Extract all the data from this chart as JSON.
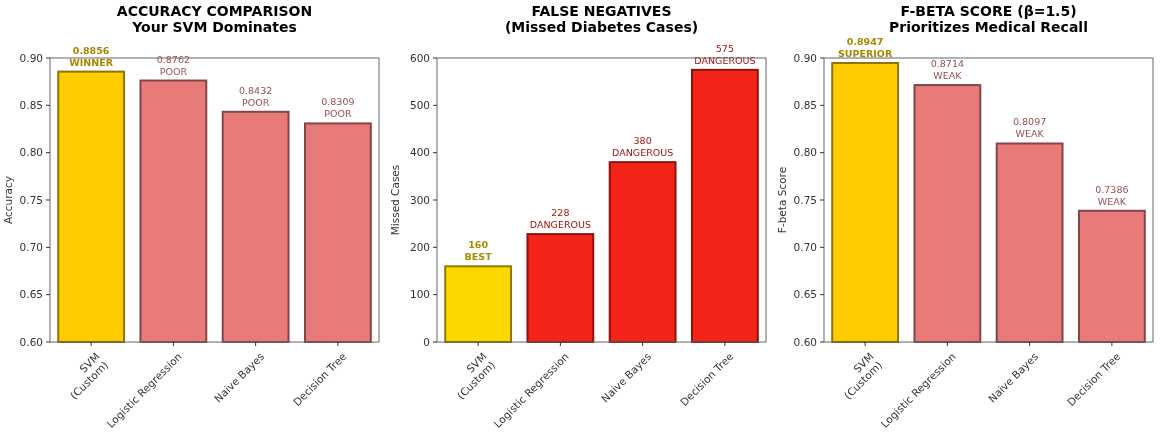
{
  "chart_data": [
    {
      "type": "bar",
      "title": "ACCURACY COMPARISON\nYour SVM Dominates",
      "ylabel": "Accuracy",
      "categories": [
        "SVM\n(Custom)",
        "Logistic Regression",
        "Naive Bayes",
        "Decision Tree"
      ],
      "values": [
        0.8856,
        0.8762,
        0.8432,
        0.8309
      ],
      "colors": [
        "#ffcc00",
        "#e87a7a",
        "#e87a7a",
        "#e87a7a"
      ],
      "value_labels": [
        "0.8856\nWINNER",
        "0.8762\nPOOR",
        "0.8432\nPOOR",
        "0.8309\nPOOR"
      ],
      "ylim": [
        0.6,
        0.9
      ],
      "yticks": [
        {
          "value": 0.6,
          "label": "0.60"
        },
        {
          "value": 0.65,
          "label": "0.65"
        },
        {
          "value": 0.7,
          "label": "0.70"
        },
        {
          "value": 0.75,
          "label": "0.75"
        },
        {
          "value": 0.8,
          "label": "0.80"
        },
        {
          "value": 0.85,
          "label": "0.85"
        },
        {
          "value": 0.9,
          "label": "0.90"
        }
      ]
    },
    {
      "type": "bar",
      "title": "FALSE NEGATIVES\n(Missed Diabetes Cases)",
      "ylabel": "Missed Cases",
      "categories": [
        "SVM\n(Custom)",
        "Logistic Regression",
        "Naive Bayes",
        "Decision Tree"
      ],
      "values": [
        160,
        228,
        380,
        575
      ],
      "colors": [
        "#ffd700",
        "#f52418",
        "#f52418",
        "#f52418"
      ],
      "value_labels": [
        "160\nBEST",
        "228\nDANGEROUS",
        "380\nDANGEROUS",
        "575\nDANGEROUS"
      ],
      "ylim": [
        0,
        600
      ],
      "yticks": [
        0,
        100,
        200,
        300,
        400,
        500,
        600
      ]
    },
    {
      "type": "bar",
      "title": "F-BETA SCORE (β=1.5)\nPrioritizes Medical Recall",
      "ylabel": "F-beta Score",
      "categories": [
        "SVM\n(Custom)",
        "Logistic Regression",
        "Naive Bayes",
        "Decision Tree"
      ],
      "values": [
        0.8947,
        0.8714,
        0.8097,
        0.7386
      ],
      "colors": [
        "#ffcc00",
        "#e87a7a",
        "#e87a7a",
        "#e87a7a"
      ],
      "value_labels": [
        "0.8947\nSUPERIOR",
        "0.8714\nWEAK",
        "0.8097\nWEAK",
        "0.7386\nWEAK"
      ],
      "ylim": [
        0.6,
        0.9
      ],
      "yticks": [
        {
          "value": 0.6,
          "label": "0.60"
        },
        {
          "value": 0.65,
          "label": "0.65"
        },
        {
          "value": 0.7,
          "label": "0.70"
        },
        {
          "value": 0.75,
          "label": "0.75"
        },
        {
          "value": 0.8,
          "label": "0.80"
        },
        {
          "value": 0.85,
          "label": "0.85"
        },
        {
          "value": 0.9,
          "label": "0.90"
        }
      ]
    }
  ]
}
